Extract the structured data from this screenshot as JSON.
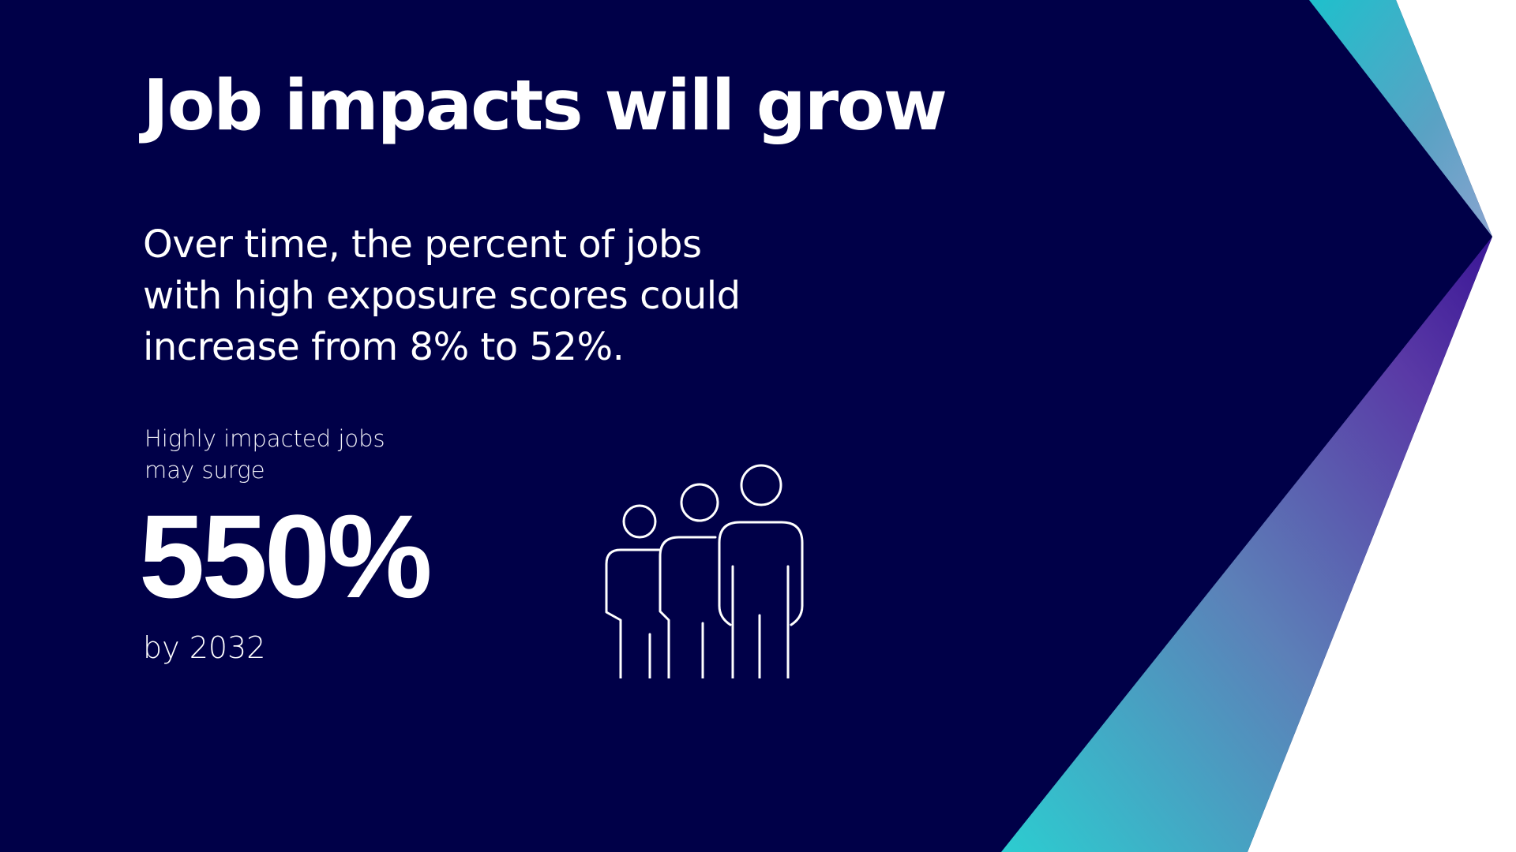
{
  "slide": {
    "title": "Job impacts will grow",
    "subtitle": "Over time, the percent of jobs with high exposure scores could increase from 8% to 52%.",
    "stat": {
      "label": "Highly impacted jobs may surge",
      "value": "550%",
      "caption": "by 2032"
    },
    "icon": "people-group-icon"
  },
  "colors": {
    "background": "#000048",
    "text": "#ffffff",
    "accent_teal": "#26bccb",
    "accent_purple": "#4a1aa0",
    "accent_blue": "#6a8cc0"
  }
}
